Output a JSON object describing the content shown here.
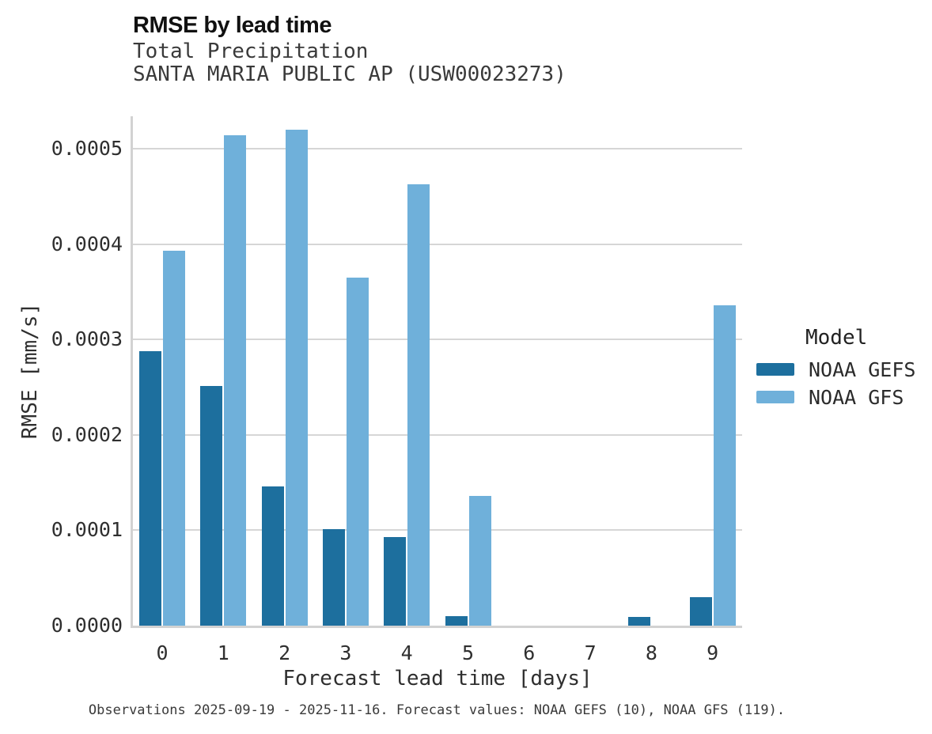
{
  "header": {
    "title": "RMSE by lead time",
    "subtitle": "Total Precipitation",
    "station": "SANTA MARIA PUBLIC AP (USW00023273)"
  },
  "legend": {
    "title": "Model",
    "items": [
      {
        "label": "NOAA GEFS",
        "color": "#1d6f9e"
      },
      {
        "label": "NOAA GFS",
        "color": "#6fb0da"
      }
    ]
  },
  "caption": "Observations 2025-09-19 - 2025-11-16. Forecast values: NOAA GEFS (10), NOAA GFS (119).",
  "colors": {
    "gefs": "#1d6f9e",
    "gfs": "#6fb0da",
    "grid": "#d6d6d6",
    "spine": "#d2d2d2"
  },
  "chart_data": {
    "type": "bar",
    "title": "RMSE by lead time",
    "subtitle": "Total Precipitation",
    "station": "SANTA MARIA PUBLIC AP (USW00023273)",
    "xlabel": "Forecast lead time [days]",
    "ylabel": "RMSE [mm/s]",
    "categories": [
      "0",
      "1",
      "2",
      "3",
      "4",
      "5",
      "6",
      "7",
      "8",
      "9"
    ],
    "series": [
      {
        "name": "NOAA GEFS",
        "color": "#1d6f9e",
        "values": [
          0.000288,
          0.000251,
          0.000146,
          0.000101,
          9.3e-05,
          1e-05,
          0,
          0,
          9e-06,
          3e-05
        ]
      },
      {
        "name": "NOAA GFS",
        "color": "#6fb0da",
        "values": [
          0.000393,
          0.000514,
          0.00052,
          0.000365,
          0.000463,
          0.000136,
          0,
          0,
          0,
          0.000336
        ]
      }
    ],
    "yticks": [
      0,
      0.0001,
      0.0002,
      0.0003,
      0.0004,
      0.0005
    ],
    "ytick_labels": [
      "0.0000",
      "0.0001",
      "0.0002",
      "0.0003",
      "0.0004",
      "0.0005"
    ],
    "ylim": [
      0,
      0.000534
    ],
    "grid": true,
    "legend_position": "right-center"
  }
}
